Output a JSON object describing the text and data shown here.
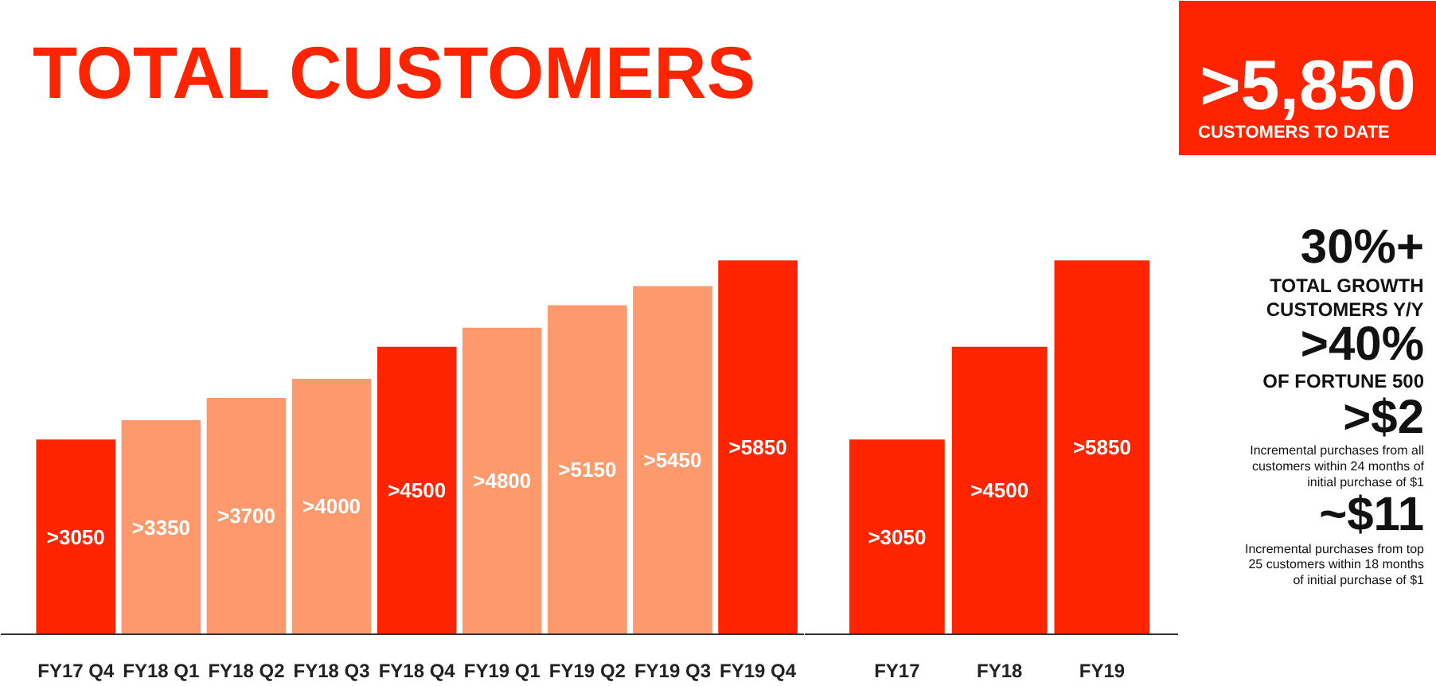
{
  "chart_data": [
    {
      "type": "bar",
      "title": "TOTAL CUSTOMERS",
      "categories": [
        "FY17 Q4",
        "FY18 Q1",
        "FY18 Q2",
        "FY18 Q3",
        "FY18 Q4",
        "FY19 Q1",
        "FY19 Q2",
        "FY19 Q3",
        "FY19 Q4"
      ],
      "values": [
        3050,
        3350,
        3700,
        4000,
        4500,
        4800,
        5150,
        5450,
        5850
      ],
      "colors": [
        "#ff2400",
        "#fc9a6e",
        "#fc9a6e",
        "#fc9a6e",
        "#ff2400",
        "#fc9a6e",
        "#fc9a6e",
        "#fc9a6e",
        "#ff2400"
      ],
      "value_labels": [
        ">3050",
        ">3350",
        ">3700",
        ">4000",
        ">4500",
        ">4800",
        ">5150",
        ">5450",
        ">5850"
      ],
      "tick_labels": "x"
    },
    {
      "type": "bar",
      "categories": [
        "FY17",
        "FY18",
        "FY19"
      ],
      "values": [
        3050,
        4500,
        5850
      ],
      "colors": [
        "#ff2400",
        "#ff2400",
        "#ff2400"
      ],
      "value_labels": [
        ">3050",
        ">4500",
        ">5850"
      ],
      "tick_labels": "x"
    },
    {
      "type": "other",
      "title": ">5,850",
      "subtitle": "CUSTOMERS TO DATE",
      "color": "#ff2400",
      "annotations": [
        "30%+",
        "TOTAL GROWTH\nCUSTOMERS Y/Y",
        ">40%",
        "OF FORTUNE 500",
        ">$2",
        "Incremental purchases from all\ncustomers within 24 months of\ninitial purchase of $1",
        "~$11",
        "Incremental purchases from top\n25 customers within 18 months\nof initial purchase of $1"
      ]
    }
  ]
}
